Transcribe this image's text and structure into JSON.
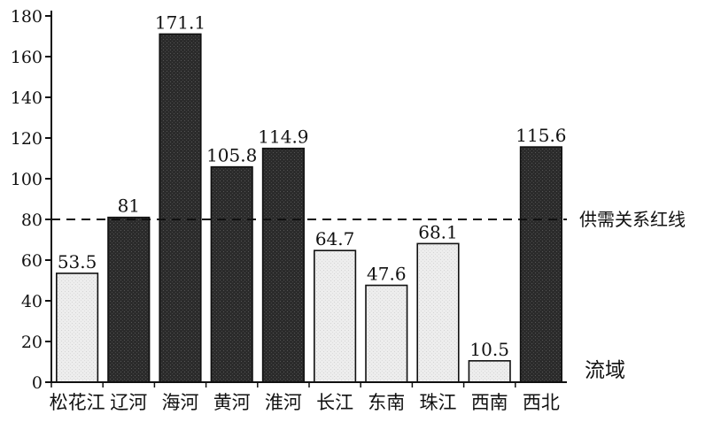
{
  "chart_data": {
    "type": "bar",
    "categories": [
      "松花江",
      "辽河",
      "海河",
      "黄河",
      "淮河",
      "长江",
      "东南",
      "珠江",
      "西南",
      "西北"
    ],
    "values": [
      53.5,
      81,
      171.1,
      105.8,
      114.9,
      64.7,
      47.6,
      68.1,
      10.5,
      115.6
    ],
    "value_labels": [
      "53.5",
      "81",
      "171.1",
      "105.8",
      "114.9",
      "64.7",
      "47.6",
      "68.1",
      "10.5",
      "115.6"
    ],
    "title": "",
    "xlabel": "流域",
    "ylabel": "",
    "ylim": [
      0,
      180
    ],
    "yticks": [
      "0",
      "20",
      "40",
      "60",
      "80",
      "100",
      "120",
      "140",
      "160",
      "180"
    ],
    "grid": false,
    "reference_line": {
      "value": 80,
      "style": "dashed",
      "label": "供需关系红线"
    },
    "bar_style": {
      "above_line": "dark",
      "below_line": "light"
    },
    "colors": {
      "dark": "#2e2e2e",
      "light": "#ececec",
      "outline": "#111111"
    }
  }
}
